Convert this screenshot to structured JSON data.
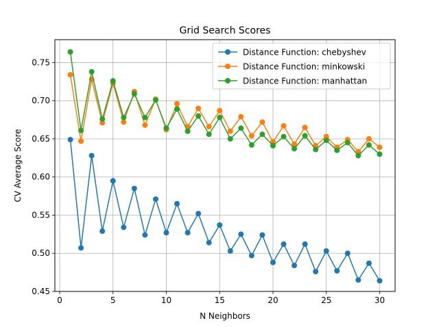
{
  "chart_data": {
    "type": "line",
    "title": "Grid Search Scores",
    "xlabel": "N Neighbors",
    "ylabel": "CV Average Score",
    "xlim": [
      -0.45,
      31.45
    ],
    "ylim": [
      0.45,
      0.78
    ],
    "grid": true,
    "legend_position": "top-right",
    "xticks": [
      0,
      5,
      10,
      15,
      20,
      25,
      30
    ],
    "yticks": [
      0.45,
      0.5,
      0.55,
      0.6,
      0.65,
      0.7,
      0.75
    ],
    "xtick_labels": [
      "0",
      "5",
      "10",
      "15",
      "20",
      "25",
      "30"
    ],
    "ytick_labels": [
      "0.45",
      "0.50",
      "0.55",
      "0.60",
      "0.65",
      "0.70",
      "0.75"
    ],
    "x": [
      1,
      2,
      3,
      4,
      5,
      6,
      7,
      8,
      9,
      10,
      11,
      12,
      13,
      14,
      15,
      16,
      17,
      18,
      19,
      20,
      21,
      22,
      23,
      24,
      25,
      26,
      27,
      28,
      29,
      30
    ],
    "series": [
      {
        "name": "Distance Function: chebyshev",
        "color": "#1f77b4",
        "values": [
          0.649,
          0.507,
          0.628,
          0.529,
          0.595,
          0.534,
          0.585,
          0.524,
          0.571,
          0.527,
          0.565,
          0.527,
          0.552,
          0.514,
          0.537,
          0.503,
          0.525,
          0.497,
          0.524,
          0.488,
          0.512,
          0.484,
          0.512,
          0.476,
          0.503,
          0.477,
          0.5,
          0.465,
          0.487,
          0.464
        ]
      },
      {
        "name": "Distance Function: minkowski",
        "color": "#ff7f0e",
        "values": [
          0.734,
          0.647,
          0.728,
          0.671,
          0.723,
          0.672,
          0.712,
          0.668,
          0.702,
          0.662,
          0.696,
          0.666,
          0.69,
          0.666,
          0.687,
          0.66,
          0.679,
          0.654,
          0.672,
          0.646,
          0.667,
          0.643,
          0.665,
          0.641,
          0.653,
          0.639,
          0.649,
          0.633,
          0.65,
          0.639
        ]
      },
      {
        "name": "Distance Function: manhattan",
        "color": "#2ca02c",
        "values": [
          0.764,
          0.661,
          0.738,
          0.676,
          0.726,
          0.678,
          0.709,
          0.678,
          0.701,
          0.664,
          0.689,
          0.66,
          0.68,
          0.656,
          0.678,
          0.65,
          0.664,
          0.642,
          0.656,
          0.641,
          0.653,
          0.637,
          0.654,
          0.636,
          0.648,
          0.635,
          0.645,
          0.628,
          0.642,
          0.63
        ]
      }
    ]
  }
}
